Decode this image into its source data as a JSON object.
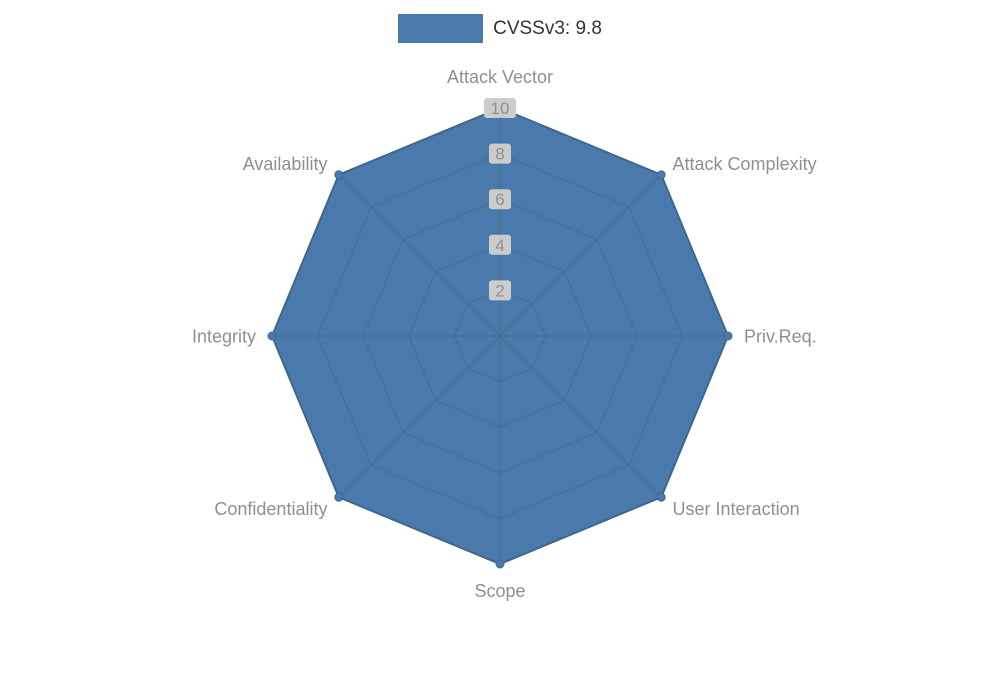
{
  "page": {
    "background": "#ffffff"
  },
  "legend": {
    "position": "top-center",
    "label": "CVSSv3: 9.8"
  },
  "chart_data": {
    "type": "radar",
    "title": "",
    "categories": [
      "Attack Vector",
      "Attack Complexity",
      "Priv.Req.",
      "User Interaction",
      "Scope",
      "Confidentiality",
      "Integrity",
      "Availability"
    ],
    "series": [
      {
        "name": "CVSSv3: 9.8",
        "values": [
          10,
          10,
          10,
          10,
          10,
          10,
          10,
          10
        ]
      }
    ],
    "axis_range": [
      0,
      10
    ],
    "ticks": [
      2,
      4,
      6,
      8,
      10
    ],
    "grid": true,
    "legend_position": "top-center",
    "colors": {
      "fill": "#4a7aab",
      "stroke": "#3d6c9b",
      "grid_line": "#4d5a66",
      "axis_label": "#8f8f8f",
      "tick_text": "#8f8f8f",
      "tick_bg": "#cccccc",
      "legend_text": "#333333"
    }
  }
}
